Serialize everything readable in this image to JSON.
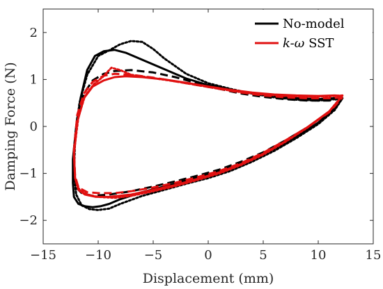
{
  "chart_data": {
    "type": "line",
    "title": "",
    "xlabel": "Displacement (mm)",
    "ylabel": "Damping Force (N)",
    "xlim": [
      -15,
      15
    ],
    "ylim": [
      -2.5,
      2.5
    ],
    "xticks": [
      -15,
      -10,
      -5,
      0,
      5,
      10,
      15
    ],
    "yticks": [
      -2,
      -1,
      0,
      1,
      2
    ],
    "xtick_labels": [
      "−15",
      "−10",
      "−5",
      "0",
      "5",
      "10",
      "15"
    ],
    "ytick_labels": [
      "−2",
      "−1",
      "0",
      "1",
      "2"
    ],
    "grid": false,
    "legend_position": "top-right",
    "legend": [
      {
        "label_plain": "No-model",
        "color": "#000000"
      },
      {
        "label_italic": "k-ω",
        "label_plain": " SST",
        "color": "#e01010"
      }
    ],
    "series": [
      {
        "name": "No-model",
        "color": "#000000",
        "style": "solid",
        "x": [
          12.2,
          11.5,
          10.0,
          8.0,
          6.0,
          4.0,
          2.0,
          0.0,
          -2.0,
          -4.0,
          -6.0,
          -7.5,
          -8.5,
          -9.5,
          -10.3,
          -11.0,
          -11.6,
          -12.0,
          -12.3,
          -12.3,
          -12.2,
          -11.8,
          -11.2,
          -10.5,
          -9.8,
          -9.0,
          -8.0,
          -6.0,
          -4.0,
          -2.0,
          0.0,
          2.0,
          4.0,
          6.0,
          8.0,
          10.0,
          11.5,
          12.2
        ],
        "y": [
          0.6,
          0.6,
          0.58,
          0.6,
          0.64,
          0.7,
          0.78,
          0.88,
          1.02,
          1.22,
          1.42,
          1.57,
          1.63,
          1.6,
          1.5,
          1.2,
          0.6,
          0.0,
          -0.7,
          -1.2,
          -1.5,
          -1.65,
          -1.7,
          -1.72,
          -1.7,
          -1.65,
          -1.55,
          -1.4,
          -1.28,
          -1.15,
          -1.02,
          -0.88,
          -0.7,
          -0.48,
          -0.22,
          0.08,
          0.38,
          0.6
        ]
      },
      {
        "name": "No-model (dotted)",
        "color": "#000000",
        "style": "dotted",
        "x": [
          12.2,
          11.5,
          10.0,
          8.0,
          6.0,
          4.0,
          2.0,
          0.0,
          -2.0,
          -4.0,
          -5.0,
          -6.0,
          -7.0,
          -8.0,
          -9.0,
          -10.0,
          -11.0,
          -11.7,
          -12.1,
          -12.2,
          -12.0,
          -11.5,
          -10.8,
          -10.0,
          -9.0,
          -8.0,
          -6.0,
          -4.0,
          -2.0,
          0.0,
          2.0,
          4.0,
          6.0,
          8.0,
          10.0,
          11.5,
          12.2
        ],
        "y": [
          0.6,
          0.58,
          0.55,
          0.57,
          0.62,
          0.7,
          0.8,
          0.92,
          1.12,
          1.45,
          1.65,
          1.8,
          1.82,
          1.75,
          1.62,
          1.5,
          1.1,
          0.5,
          -0.3,
          -1.0,
          -1.45,
          -1.68,
          -1.76,
          -1.78,
          -1.75,
          -1.65,
          -1.48,
          -1.35,
          -1.22,
          -1.1,
          -0.95,
          -0.75,
          -0.52,
          -0.25,
          0.05,
          0.35,
          0.6
        ]
      },
      {
        "name": "No-model (dashed)",
        "color": "#000000",
        "style": "dashed",
        "x": [
          12.2,
          11.0,
          9.0,
          7.0,
          5.0,
          3.0,
          1.0,
          -1.0,
          -3.0,
          -5.0,
          -7.0,
          -8.5,
          -9.5,
          -10.5,
          -11.3,
          -11.9,
          -12.2,
          -12.2,
          -12.0,
          -11.5,
          -10.5,
          -9.0,
          -7.0,
          -5.0,
          -3.0,
          -1.0,
          1.0,
          3.0,
          5.0,
          7.0,
          9.0,
          11.0,
          12.2
        ],
        "y": [
          0.6,
          0.55,
          0.55,
          0.58,
          0.63,
          0.7,
          0.8,
          0.92,
          1.05,
          1.15,
          1.2,
          1.18,
          1.12,
          0.98,
          0.7,
          0.2,
          -0.5,
          -1.05,
          -1.3,
          -1.42,
          -1.48,
          -1.45,
          -1.38,
          -1.28,
          -1.17,
          -1.05,
          -0.92,
          -0.75,
          -0.55,
          -0.3,
          -0.02,
          0.3,
          0.6
        ]
      },
      {
        "name": "k-ω SST",
        "color": "#e01010",
        "style": "solid",
        "x": [
          12.2,
          11.5,
          10.0,
          8.0,
          6.0,
          4.0,
          2.0,
          0.0,
          -2.0,
          -4.0,
          -6.0,
          -7.5,
          -8.5,
          -9.5,
          -10.5,
          -11.3,
          -11.9,
          -12.2,
          -12.1,
          -11.8,
          -11.2,
          -10.2,
          -9.0,
          -7.0,
          -5.0,
          -3.0,
          -1.0,
          1.0,
          3.0,
          5.0,
          7.0,
          9.0,
          11.0,
          12.2
        ],
        "y": [
          0.65,
          0.66,
          0.65,
          0.66,
          0.68,
          0.72,
          0.78,
          0.85,
          0.93,
          1.0,
          1.05,
          1.07,
          1.05,
          0.98,
          0.85,
          0.6,
          0.1,
          -0.6,
          -1.1,
          -1.35,
          -1.45,
          -1.5,
          -1.5,
          -1.45,
          -1.35,
          -1.25,
          -1.12,
          -0.98,
          -0.8,
          -0.58,
          -0.32,
          -0.02,
          0.32,
          0.65
        ]
      },
      {
        "name": "k-ω SST (dashed)",
        "color": "#e01010",
        "style": "dashed",
        "x": [
          12.2,
          11.0,
          9.0,
          7.0,
          5.0,
          3.0,
          1.0,
          -1.0,
          -3.0,
          -5.0,
          -7.0,
          -8.5,
          -9.5,
          -10.5,
          -11.3,
          -11.9,
          -12.2,
          -12.1,
          -11.8,
          -11.0,
          -10.0,
          -8.5,
          -7.0,
          -5.0,
          -3.0,
          -1.0,
          1.0,
          3.0,
          5.0,
          7.0,
          9.0,
          11.0,
          12.2
        ],
        "y": [
          0.62,
          0.6,
          0.6,
          0.62,
          0.66,
          0.72,
          0.8,
          0.88,
          0.96,
          1.04,
          1.1,
          1.12,
          1.08,
          0.95,
          0.7,
          0.25,
          -0.5,
          -1.05,
          -1.3,
          -1.4,
          -1.42,
          -1.42,
          -1.38,
          -1.3,
          -1.2,
          -1.08,
          -0.95,
          -0.78,
          -0.56,
          -0.3,
          -0.02,
          0.3,
          0.62
        ]
      },
      {
        "name": "k-ω SST (dotted)",
        "color": "#e01010",
        "style": "dotted",
        "x": [
          12.2,
          11.0,
          9.0,
          7.0,
          5.0,
          3.0,
          1.0,
          -1.0,
          -3.0,
          -5.0,
          -7.0,
          -8.0,
          -8.8,
          -9.6,
          -10.4,
          -11.2,
          -11.8,
          -12.2,
          -12.1,
          -11.7,
          -11.0,
          -10.0,
          -8.5,
          -7.0,
          -5.0,
          -3.0,
          -1.0,
          1.0,
          3.0,
          5.0,
          7.0,
          9.0,
          11.0,
          12.2
        ],
        "y": [
          0.66,
          0.64,
          0.63,
          0.65,
          0.68,
          0.73,
          0.8,
          0.88,
          0.96,
          1.03,
          1.1,
          1.2,
          1.25,
          1.05,
          0.9,
          0.65,
          0.2,
          -0.55,
          -1.1,
          -1.35,
          -1.45,
          -1.5,
          -1.52,
          -1.48,
          -1.38,
          -1.27,
          -1.14,
          -1.0,
          -0.82,
          -0.6,
          -0.33,
          -0.03,
          0.32,
          0.66
        ]
      }
    ]
  }
}
